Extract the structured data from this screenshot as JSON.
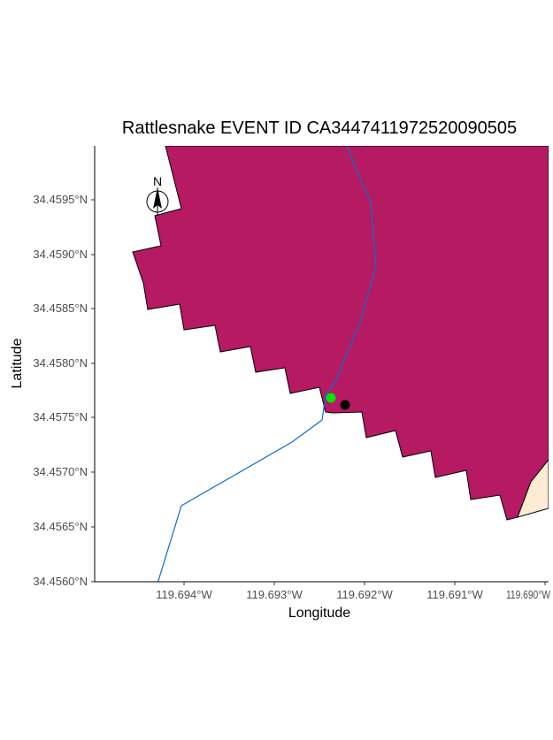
{
  "title": "Rattlesnake EVENT ID CA3447411972520090505",
  "axes": {
    "x_title": "Longitude",
    "y_title": "Latitude",
    "x_ticks": [
      "119.694°W",
      "119.693°W",
      "119.692°W",
      "119.691°W",
      "119.690°W"
    ],
    "y_ticks": [
      "34.4560°N",
      "34.4565°N",
      "34.4570°N",
      "34.4575°N",
      "34.4580°N",
      "34.4585°N",
      "34.4590°N",
      "34.4595°N"
    ]
  },
  "north_arrow": {
    "label": "N"
  },
  "colors": {
    "burn_area": "#b51a62",
    "adjacent_area": "#fdebd3",
    "stream": "#0a6ec8",
    "point_green": "#00e600",
    "point_black": "#000000"
  },
  "points": [
    {
      "name": "green-point",
      "lon": -119.6924,
      "lat": 34.45769
    },
    {
      "name": "black-point",
      "lon": -119.69224,
      "lat": 34.45762
    }
  ]
}
